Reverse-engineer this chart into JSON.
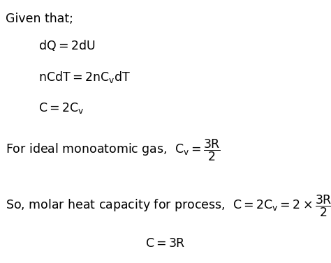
{
  "background_color": "#ffffff",
  "figsize": [
    4.74,
    3.77
  ],
  "dpi": 100,
  "font_size": 12.5,
  "text_color": "#000000"
}
